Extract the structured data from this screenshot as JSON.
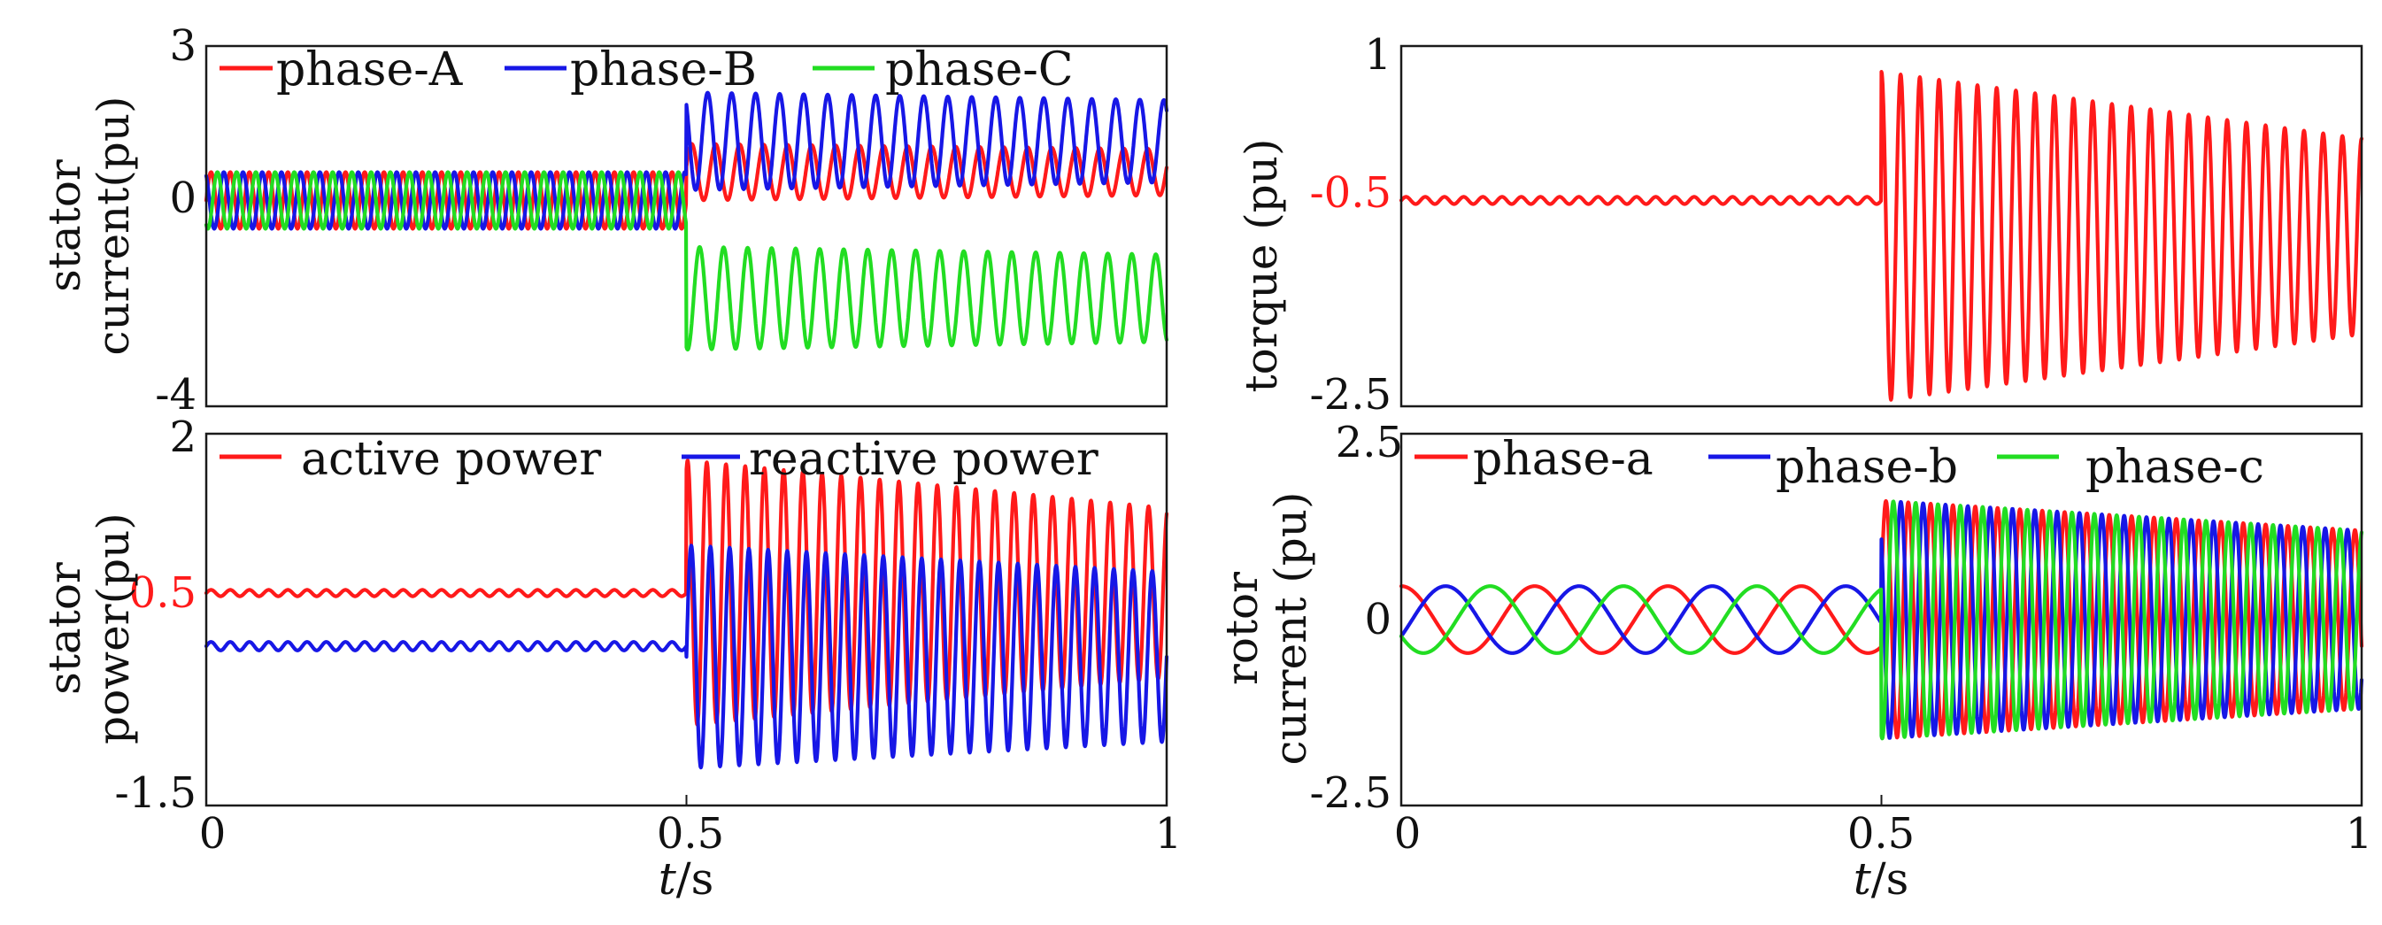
{
  "colors": {
    "red": "#ff1a1a",
    "blue": "#1717e6",
    "green": "#22dd22",
    "axis": "#1a1a1a",
    "highlight_tick": "#ff1a1a"
  },
  "chart_data": [
    {
      "id": "stator_current",
      "type": "line",
      "ylabel_line1": "stator",
      "ylabel_line2": "current(pu)",
      "xlabel": "",
      "xlim": [
        0,
        1
      ],
      "ylim": [
        -4,
        3
      ],
      "yticks": [
        {
          "value": 3,
          "label": "3"
        },
        {
          "value": 0,
          "label": "0"
        },
        {
          "value": -4,
          "label": "-4"
        }
      ],
      "xticks": [],
      "legend": [
        {
          "name": "phase-A",
          "color_key": "red"
        },
        {
          "name": "phase-B",
          "color_key": "blue"
        },
        {
          "name": "phase-C",
          "color_key": "green"
        }
      ],
      "series": [
        {
          "name": "phase-A",
          "color_key": "red",
          "pre": {
            "mean": 0,
            "amp": 0.55,
            "freq": 50,
            "phase": 0
          },
          "post": {
            "mean": 0.55,
            "amp": 0.55,
            "amp_end": 0.45,
            "freq": 40,
            "phase": 0.2
          }
        },
        {
          "name": "phase-B",
          "color_key": "blue",
          "pre": {
            "mean": 0,
            "amp": 0.55,
            "freq": 50,
            "phase": 2.094
          },
          "post": {
            "mean": 1.15,
            "amp": 0.95,
            "amp_end": 0.8,
            "freq": 40,
            "phase": 2.3
          }
        },
        {
          "name": "phase-C",
          "color_key": "green",
          "pre": {
            "mean": 0,
            "amp": 0.55,
            "freq": 50,
            "phase": 4.189
          },
          "post": {
            "mean": -1.9,
            "amp": 1.0,
            "amp_end": 0.85,
            "freq": 40,
            "phase": 4.4
          }
        }
      ]
    },
    {
      "id": "torque",
      "type": "line",
      "ylabel_line1": "torque (pu)",
      "ylabel_line2": "",
      "xlabel": "",
      "xlim": [
        0,
        1
      ],
      "ylim": [
        -2.5,
        1
      ],
      "yticks": [
        {
          "value": 1,
          "label": "1",
          "highlight": false
        },
        {
          "value": -0.5,
          "label": "-0.5",
          "highlight": true
        },
        {
          "value": -2.5,
          "label": "-2.5",
          "highlight": false
        }
      ],
      "xticks": [],
      "legend": [],
      "series": [
        {
          "name": "torque",
          "color_key": "red",
          "pre": {
            "mean": -0.5,
            "amp": 0.035,
            "freq": 50,
            "phase": 0
          },
          "post": {
            "mean": -0.85,
            "amp": 1.6,
            "amp_end": 0.95,
            "freq": 50,
            "phase": 1.57
          }
        }
      ]
    },
    {
      "id": "stator_power",
      "type": "line",
      "ylabel_line1": "stator",
      "ylabel_line2": "power(pu)",
      "xlabel_italic": "t",
      "xlabel_rest": "/s",
      "xlim": [
        0,
        1
      ],
      "ylim": [
        -1.5,
        2
      ],
      "yticks": [
        {
          "value": 2,
          "label": "2",
          "highlight": false
        },
        {
          "value": 0.5,
          "label": "0.5",
          "highlight": true
        },
        {
          "value": -1.5,
          "label": "-1.5",
          "highlight": false
        }
      ],
      "xticks": [
        {
          "value": 0,
          "label": "0"
        },
        {
          "value": 0.5,
          "label": "0.5"
        },
        {
          "value": 1,
          "label": "1"
        }
      ],
      "legend": [
        {
          "name": "active power",
          "color_key": "red"
        },
        {
          "name": "reactive power",
          "color_key": "blue"
        }
      ],
      "series": [
        {
          "name": "active power",
          "color_key": "red",
          "pre": {
            "mean": 0.5,
            "amp": 0.03,
            "freq": 50,
            "phase": 0
          },
          "post": {
            "mean": 0.5,
            "amp": 1.25,
            "amp_end": 0.8,
            "freq": 50,
            "phase": 1.2
          }
        },
        {
          "name": "reactive power",
          "color_key": "blue",
          "pre": {
            "mean": 0.0,
            "amp": 0.04,
            "freq": 50,
            "phase": 0
          },
          "post": {
            "mean": -0.1,
            "amp": 1.05,
            "amp_end": 0.8,
            "freq": 50,
            "phase": 0
          }
        }
      ]
    },
    {
      "id": "rotor_current",
      "type": "line",
      "ylabel_line1": "rotor",
      "ylabel_line2": "current (pu)",
      "xlabel_italic": "t",
      "xlabel_rest": "/s",
      "xlim": [
        0,
        1
      ],
      "ylim": [
        -2.5,
        2.5
      ],
      "yticks": [
        {
          "value": 2.5,
          "label": "2.5",
          "highlight": false
        },
        {
          "value": 0,
          "label": "0",
          "highlight": false
        },
        {
          "value": -2.5,
          "label": "-2.5",
          "highlight": false
        }
      ],
      "xticks": [
        {
          "value": 0,
          "label": "0"
        },
        {
          "value": 0.5,
          "label": "0.5"
        },
        {
          "value": 1,
          "label": "1"
        }
      ],
      "legend": [
        {
          "name": "phase-a",
          "color_key": "red"
        },
        {
          "name": "phase-b",
          "color_key": "blue"
        },
        {
          "name": "phase-c",
          "color_key": "green"
        }
      ],
      "series": [
        {
          "name": "phase-a",
          "color_key": "red",
          "pre": {
            "mean": 0,
            "amp": 0.45,
            "freq": 7.2,
            "phase": 1.57
          },
          "post": {
            "mean": 0,
            "amp": 1.6,
            "amp_end": 1.2,
            "freq": 43,
            "phase": 0.3
          }
        },
        {
          "name": "phase-b",
          "color_key": "blue",
          "pre": {
            "mean": 0,
            "amp": 0.45,
            "freq": 7.2,
            "phase": -0.52
          },
          "post": {
            "mean": 0,
            "amp": 1.6,
            "amp_end": 1.2,
            "freq": 43,
            "phase": 2.4
          }
        },
        {
          "name": "phase-c",
          "color_key": "green",
          "pre": {
            "mean": 0,
            "amp": 0.45,
            "freq": 7.2,
            "phase": -2.62
          },
          "post": {
            "mean": 0,
            "amp": 1.6,
            "amp_end": 1.2,
            "freq": 43,
            "phase": 4.5
          }
        }
      ]
    }
  ]
}
